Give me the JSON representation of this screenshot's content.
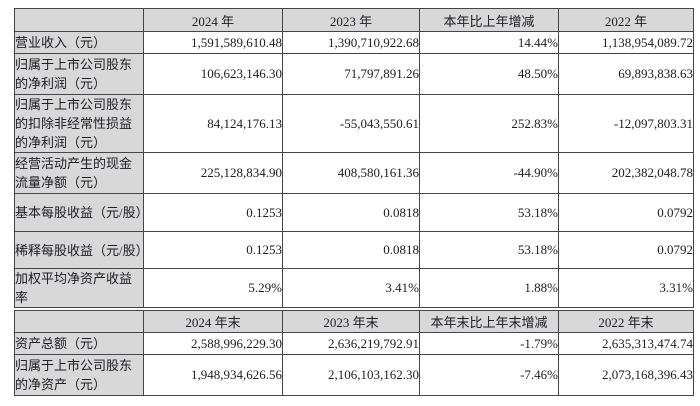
{
  "colors": {
    "header_bg": "#d8d8d8",
    "label_bg": "#d8d8d8",
    "border": "#454549",
    "text": "#1d1d24",
    "cell_bg": "#ffffff"
  },
  "annual_section": {
    "headers": [
      "",
      "2024 年",
      "2023 年",
      "本年比上年增减",
      "2022 年"
    ],
    "rows": [
      {
        "label": "营业收入（元）",
        "v": [
          "1,591,589,610.48",
          "1,390,710,922.68",
          "14.44%",
          "1,138,954,089.72"
        ]
      },
      {
        "label": "归属于上市公司股东的净利润（元）",
        "v": [
          "106,623,146.30",
          "71,797,891.26",
          "48.50%",
          "69,893,838.63"
        ]
      },
      {
        "label": "归属于上市公司股东的扣除非经常性损益的净利润（元）",
        "v": [
          "84,124,176.13",
          "-55,043,550.61",
          "252.83%",
          "-12,097,803.31"
        ]
      },
      {
        "label": "经营活动产生的现金流量净额（元）",
        "v": [
          "225,128,834.90",
          "408,580,161.36",
          "-44.90%",
          "202,382,048.78"
        ]
      },
      {
        "label": "基本每股收益（元/股）",
        "v": [
          "0.1253",
          "0.0818",
          "53.18%",
          "0.0792"
        ]
      },
      {
        "label": "稀释每股收益（元/股）",
        "v": [
          "0.1253",
          "0.0818",
          "53.18%",
          "0.0792"
        ]
      },
      {
        "label": "加权平均净资产收益率",
        "v": [
          "5.29%",
          "3.41%",
          "1.88%",
          "3.31%"
        ]
      }
    ]
  },
  "period_end_section": {
    "headers": [
      "",
      "2024 年末",
      "2023 年末",
      "本年末比上年末增减",
      "2022 年末"
    ],
    "rows": [
      {
        "label": "资产总额（元）",
        "v": [
          "2,588,996,229.30",
          "2,636,219,792.91",
          "-1.79%",
          "2,635,313,474.74"
        ]
      },
      {
        "label": "归属于上市公司股东的净资产（元）",
        "v": [
          "1,948,934,626.56",
          "2,106,103,162.30",
          "-7.46%",
          "2,073,168,396.43"
        ]
      }
    ]
  }
}
